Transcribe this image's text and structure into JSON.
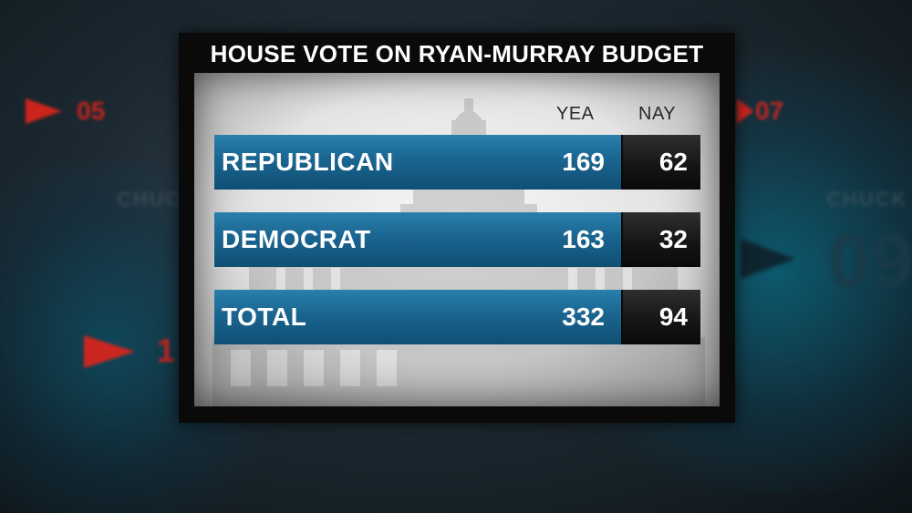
{
  "graphic": {
    "title": "HOUSE VOTE ON RYAN-MURRAY BUDGET",
    "columns": {
      "yea": "YEA",
      "nay": "NAY"
    },
    "rows": [
      {
        "label": "REPUBLICAN",
        "yea": "169",
        "nay": "62"
      },
      {
        "label": "DEMOCRAT",
        "yea": "163",
        "nay": "32"
      },
      {
        "label": "TOTAL",
        "yea": "332",
        "nay": "94"
      }
    ]
  },
  "background": {
    "numbers": [
      "05",
      "07",
      "09",
      "1"
    ],
    "words": [
      "CHUCK"
    ]
  },
  "colors": {
    "yea_bar": "#1a6590",
    "nay_bar": "#141414",
    "accent_red": "#e0241b"
  }
}
